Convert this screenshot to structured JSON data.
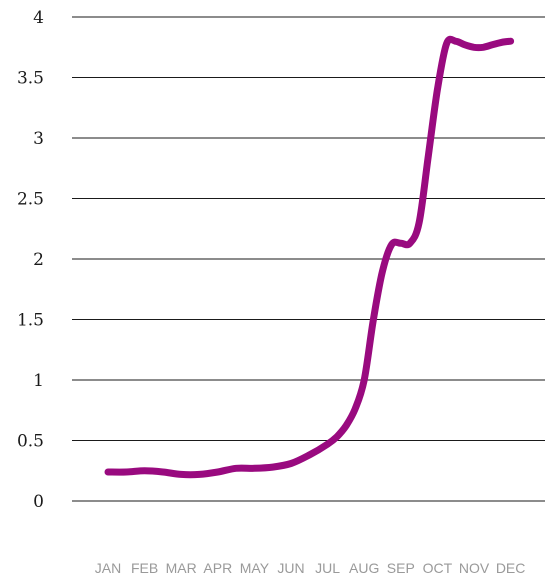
{
  "chart_data": {
    "type": "line",
    "categories": [
      "JAN",
      "FEB",
      "MAR",
      "APR",
      "MAY",
      "JUN",
      "JUL",
      "AUG",
      "SEP",
      "OCT",
      "NOV",
      "DEC"
    ],
    "x": [
      0,
      0.5,
      1,
      1.5,
      2,
      2.5,
      3,
      3.5,
      4,
      4.5,
      5,
      5.5,
      6,
      6.25,
      6.5,
      6.75,
      7,
      7.25,
      7.5,
      7.75,
      8,
      8.25,
      8.5,
      8.75,
      9,
      9.25,
      9.5,
      9.75,
      10,
      10.25,
      10.5,
      10.75,
      11
    ],
    "series": [
      {
        "values": [
          0.24,
          0.24,
          0.25,
          0.24,
          0.22,
          0.22,
          0.24,
          0.27,
          0.27,
          0.28,
          0.31,
          0.38,
          0.47,
          0.53,
          0.62,
          0.76,
          1.0,
          1.5,
          1.9,
          2.12,
          2.13,
          2.13,
          2.3,
          2.85,
          3.4,
          3.78,
          3.8,
          3.77,
          3.75,
          3.75,
          3.77,
          3.79,
          3.8
        ],
        "color": "#990a7f"
      }
    ],
    "yticks": [
      "0",
      "0.5",
      "1",
      "1.5",
      "2",
      "2.5",
      "3",
      "3.5",
      "4"
    ],
    "ylim": [
      0,
      4
    ],
    "grid": true,
    "legend": "none"
  }
}
